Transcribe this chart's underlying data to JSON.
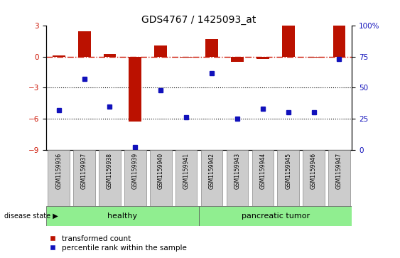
{
  "title": "GDS4767 / 1425093_at",
  "samples": [
    "GSM1159936",
    "GSM1159937",
    "GSM1159938",
    "GSM1159939",
    "GSM1159940",
    "GSM1159941",
    "GSM1159942",
    "GSM1159943",
    "GSM1159944",
    "GSM1159945",
    "GSM1159946",
    "GSM1159947"
  ],
  "transformed_count": [
    0.15,
    2.5,
    0.25,
    -6.3,
    1.1,
    -0.05,
    1.7,
    -0.5,
    -0.2,
    3.0,
    -0.1,
    3.0
  ],
  "percentile_rank": [
    32,
    57,
    35,
    2,
    48,
    26,
    62,
    25,
    33,
    30,
    30,
    73
  ],
  "ylim_left": [
    -9,
    3
  ],
  "ylim_right": [
    0,
    100
  ],
  "yticks_left": [
    3,
    0,
    -3,
    -6,
    -9
  ],
  "yticks_right": [
    100,
    75,
    50,
    25,
    0
  ],
  "n_healthy": 6,
  "n_tumor": 6,
  "healthy_label": "healthy",
  "tumor_label": "pancreatic tumor",
  "disease_state_label": "disease state",
  "legend_bar_label": "transformed count",
  "legend_dot_label": "percentile rank within the sample",
  "bar_color": "#bb1100",
  "dot_color": "#1111bb",
  "dashed_line_color": "#cc1100",
  "group_bg_color": "#90ee90",
  "tick_label_color_left": "#cc1100",
  "tick_label_color_right": "#1111bb",
  "background_color": "#ffffff",
  "plot_bg_color": "#ffffff",
  "sample_box_color": "#cccccc",
  "sample_box_edge": "#888888"
}
